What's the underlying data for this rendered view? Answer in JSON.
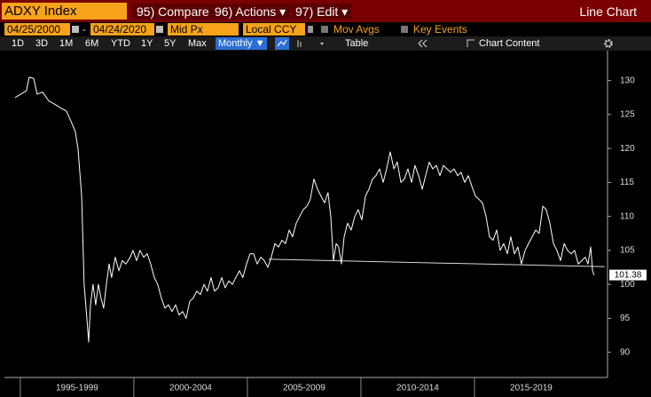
{
  "toolbar": {
    "ticker": "ADXY Index",
    "compare": "95) Compare",
    "actions": "96) Actions ▾",
    "edit": "97) Edit ▾",
    "view": "Line Chart",
    "start_date": "04/25/2000",
    "date_sep": "-",
    "end_date": "04/24/2020",
    "price": "Mid Px",
    "currency": "Local CCY",
    "mov_avgs": "Mov Avgs",
    "key_events": "Key Events",
    "periods": [
      "1D",
      "3D",
      "1M",
      "6M",
      "YTD",
      "1Y",
      "5Y",
      "Max"
    ],
    "frequency": "Monthly ▼",
    "table": "Table",
    "chart_content": "Chart Content"
  },
  "chart_data": {
    "type": "line",
    "color": "#ffffff",
    "x": [
      1994.77,
      1995.27,
      1995.39,
      1995.59,
      1995.74,
      1995.98,
      1996.25,
      1996.52,
      1996.76,
      1997.03,
      1997.23,
      1997.42,
      1997.54,
      1997.7,
      1997.81,
      1997.93,
      1998.01,
      1998.09,
      1998.2,
      1998.32,
      1998.44,
      1998.55,
      1998.67,
      1998.79,
      1998.91,
      1999.02,
      1999.18,
      1999.34,
      1999.49,
      1999.65,
      1999.84,
      1999.96,
      2000.12,
      2000.27,
      2000.43,
      2000.59,
      2000.74,
      2000.9,
      2001.05,
      2001.21,
      2001.37,
      2001.52,
      2001.68,
      2001.84,
      2001.99,
      2002.15,
      2002.3,
      2002.46,
      2002.62,
      2002.77,
      2002.93,
      2003.09,
      2003.24,
      2003.4,
      2003.55,
      2003.71,
      2003.87,
      2004.02,
      2004.18,
      2004.34,
      2004.49,
      2004.65,
      2004.8,
      2004.96,
      2005.12,
      2005.27,
      2005.43,
      2005.59,
      2005.74,
      2005.9,
      2006.05,
      2006.21,
      2006.37,
      2006.52,
      2006.68,
      2006.84,
      2006.99,
      2007.15,
      2007.3,
      2007.46,
      2007.62,
      2007.77,
      2007.93,
      2008.09,
      2008.24,
      2008.4,
      2008.55,
      2008.67,
      2008.79,
      2008.91,
      2009.02,
      2009.14,
      2009.26,
      2009.41,
      2009.57,
      2009.73,
      2009.88,
      2010.04,
      2010.2,
      2010.35,
      2010.51,
      2010.66,
      2010.82,
      2010.98,
      2011.13,
      2011.29,
      2011.45,
      2011.6,
      2011.76,
      2011.91,
      2012.07,
      2012.23,
      2012.38,
      2012.54,
      2012.7,
      2012.85,
      2013.01,
      2013.16,
      2013.32,
      2013.48,
      2013.63,
      2013.79,
      2013.95,
      2014.1,
      2014.26,
      2014.41,
      2014.57,
      2014.73,
      2014.88,
      2015.04,
      2015.2,
      2015.35,
      2015.51,
      2015.66,
      2015.82,
      2015.98,
      2016.13,
      2016.29,
      2016.45,
      2016.6,
      2016.76,
      2016.91,
      2017.07,
      2017.23,
      2017.38,
      2017.54,
      2017.7,
      2017.85,
      2018.01,
      2018.16,
      2018.32,
      2018.48,
      2018.63,
      2018.79,
      2018.95,
      2019.1,
      2019.26,
      2019.41,
      2019.57,
      2019.73,
      2019.88,
      2020.0,
      2020.12,
      2020.2,
      2020.27
    ],
    "values": [
      127.5,
      128.5,
      130.5,
      130.3,
      128,
      128.3,
      127,
      126.5,
      126,
      125.5,
      124,
      122.5,
      120,
      113,
      100,
      95,
      91.5,
      97,
      100,
      97,
      100,
      98,
      96.5,
      100,
      103,
      101,
      104,
      102,
      103.5,
      103,
      104,
      105,
      103.5,
      105,
      104,
      104.5,
      103,
      101,
      100,
      98,
      96.5,
      97,
      96,
      97,
      95.5,
      96,
      95,
      97.5,
      98,
      99,
      98.5,
      100,
      99,
      101,
      99,
      99.5,
      101,
      99.5,
      100.5,
      100,
      101,
      102,
      101,
      103,
      104.5,
      104.5,
      103,
      104,
      103.5,
      102.5,
      104,
      106,
      105.5,
      106.5,
      106,
      108,
      107,
      109,
      110,
      111,
      111.5,
      112.5,
      115.5,
      114,
      113,
      112,
      113.5,
      110,
      103.5,
      106,
      105.5,
      103,
      107,
      109,
      108,
      110,
      111,
      109.5,
      113,
      114,
      115.5,
      116,
      117,
      115,
      117,
      119.5,
      117,
      118,
      115,
      115.5,
      117,
      115,
      117.5,
      116,
      114,
      116,
      118,
      117,
      117.5,
      116,
      117.5,
      117,
      116.5,
      117,
      116,
      116.5,
      115,
      116,
      114.5,
      113,
      112.5,
      112,
      110,
      107,
      106.5,
      108,
      105,
      106,
      104.5,
      107,
      104.5,
      105.5,
      103,
      105,
      106,
      107,
      108,
      107.5,
      111.5,
      111,
      109,
      106,
      105,
      103.5,
      106,
      105,
      104.5,
      105,
      103,
      103.5,
      104,
      103,
      105.5,
      102,
      101.38
    ],
    "last_value_label": "101.38",
    "trendline": {
      "x": [
        2005.94,
        2020.74
      ],
      "values": [
        103.7,
        102.6
      ],
      "color": "#d8d8d8"
    },
    "xlim": [
      1994.3,
      2020.86
    ],
    "xticks": [
      {
        "value": 1995,
        "label": "1995-1999"
      },
      {
        "value": 2000,
        "label": "2000-2004"
      },
      {
        "value": 2005,
        "label": "2005-2009"
      },
      {
        "value": 2010,
        "label": "2010-2014"
      },
      {
        "value": 2015,
        "label": "2015-2019"
      }
    ],
    "ylim": [
      86.3,
      134.4
    ],
    "yticks": [
      90,
      95,
      100,
      105,
      110,
      115,
      120,
      125,
      130
    ]
  }
}
